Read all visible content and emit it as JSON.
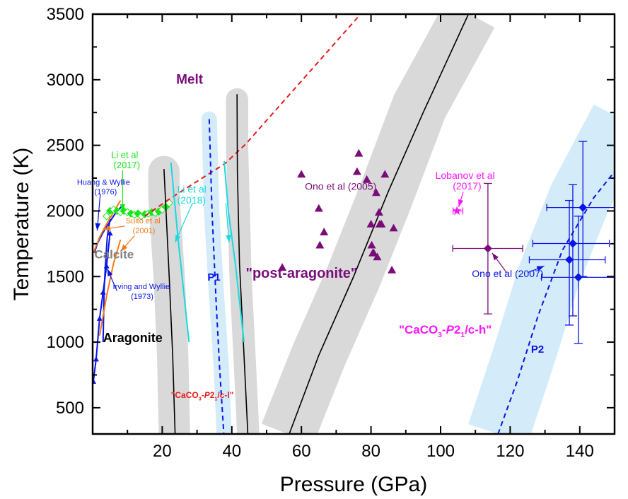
{
  "chart_data": {
    "type": "scatter",
    "title": "",
    "xlabel": "Pressure (GPa)",
    "ylabel": "Temperature (K)",
    "xlim": [
      0,
      150
    ],
    "ylim": [
      300,
      3500
    ],
    "xticks": [
      20,
      40,
      60,
      80,
      100,
      120,
      140
    ],
    "xtick_labels": [
      "20",
      "40",
      "60",
      "80",
      "100",
      "120",
      "140"
    ],
    "xminor": [
      10,
      30,
      50,
      70,
      90,
      110,
      130
    ],
    "yticks": [
      500,
      1000,
      1500,
      2000,
      2500,
      3000,
      3500
    ],
    "ytick_labels": [
      "500",
      "1000",
      "1500",
      "2000",
      "2500",
      "3000",
      "3500"
    ],
    "yminor": [
      750,
      1250,
      1750,
      2250,
      2750,
      3250
    ],
    "grid": false,
    "colors": {
      "boundary": "#000000",
      "band_gray": "#d9d9d9",
      "band_blue": "#d4ecf9",
      "melt": "#e8191a",
      "ono2005": "#7a0c7a",
      "ono2007": "#0a14e6",
      "lobanov": "#ff14ff",
      "li2017": "#19e619",
      "li2018": "#19d9e0",
      "suito": "#f47a18",
      "irving": "#0a14e6",
      "calcite_label": "#808080",
      "p1": "#0a14e6"
    },
    "bands": [
      {
        "name": "aragonite-P21c-l band",
        "color": "gray",
        "points": [
          [
            20.5,
            2300
          ],
          [
            20.5,
            2100
          ],
          [
            22,
            1500
          ],
          [
            23,
            900
          ],
          [
            23.5,
            300
          ]
        ],
        "halfwidth_gpa": 4.5,
        "rounded_top": true
      },
      {
        "name": "P1 band",
        "color": "blue",
        "points": [
          [
            33.5,
            2700
          ],
          [
            34.2,
            2000
          ],
          [
            35.5,
            1400
          ],
          [
            37,
            800
          ],
          [
            37.8,
            300
          ]
        ],
        "halfwidth_gpa": 2.2,
        "rounded_top": true
      },
      {
        "name": "P21c-l to post-aragonite band",
        "color": "gray",
        "points": [
          [
            41.5,
            2850
          ],
          [
            41.5,
            2500
          ],
          [
            42.5,
            1500
          ],
          [
            44,
            700
          ],
          [
            44.7,
            300
          ]
        ],
        "halfwidth_gpa": 3.2,
        "rounded_top": true
      },
      {
        "name": "post-aragonite band",
        "color": "gray",
        "points": [
          [
            56,
            300
          ],
          [
            65,
            900
          ],
          [
            75,
            1500
          ],
          [
            84,
            2100
          ],
          [
            94,
            2800
          ],
          [
            108.5,
            3500
          ]
        ],
        "halfwidth_gpa": 8
      },
      {
        "name": "P2 band",
        "color": "blue",
        "points": [
          [
            116.5,
            300
          ],
          [
            124,
            900
          ],
          [
            131,
            1500
          ],
          [
            140,
            2100
          ],
          [
            152,
            2700
          ]
        ],
        "halfwidth_gpa": 9
      }
    ],
    "series": [
      {
        "name": "Calcite-Aragonite boundary (Irving and Wyllie 1973)",
        "style": "line-triangles",
        "color": "irving",
        "x": [
          0.2,
          1.0,
          2.0,
          3.0,
          4.0,
          5.0
        ],
        "y": [
          700,
          870,
          1180,
          1380,
          1580,
          1830
        ]
      },
      {
        "name": "Huang & Wyllie (1976)",
        "style": "line",
        "color": "irving",
        "x": [
          0.5,
          1.5,
          2.5,
          3.5,
          4.5,
          5.5,
          6.5,
          7.5,
          8.5
        ],
        "y": [
          1680,
          1760,
          1810,
          1860,
          1900,
          1940,
          1980,
          2010,
          2040
        ]
      },
      {
        "name": "Huang & Wyllie (1976) melting",
        "style": "line",
        "color": "irving",
        "x": [
          3,
          3.3,
          3.7,
          4.2,
          5.0
        ],
        "y": [
          1000,
          1400,
          1600,
          1800,
          1940
        ]
      },
      {
        "name": "Suito et al (2001)",
        "style": "line",
        "color": "suito",
        "x": [
          0.2,
          2,
          4,
          6,
          8
        ],
        "y": [
          1680,
          1800,
          1900,
          1990,
          2080
        ]
      },
      {
        "name": "Suito et al (2001) 2",
        "style": "line",
        "color": "suito",
        "x": [
          2,
          4,
          6,
          8
        ],
        "y": [
          1050,
          1350,
          1600,
          1780
        ]
      },
      {
        "name": "Li et al (2017)",
        "style": "diamonds",
        "color": "li2017",
        "x": [
          4,
          5,
          6,
          7,
          8,
          9,
          10,
          11,
          12,
          13,
          14,
          15,
          16,
          17,
          18,
          19,
          20,
          21,
          22
        ],
        "y": [
          1960,
          2000,
          2010,
          2000,
          1990,
          2000,
          1990,
          1980,
          1970,
          1980,
          1960,
          1975,
          1980,
          1990,
          1985,
          1995,
          2010,
          2030,
          2060
        ]
      },
      {
        "name": "Melting curve (extrapolated)",
        "style": "dashed",
        "color": "melt",
        "x": [
          15,
          22,
          38,
          44,
          77
        ],
        "y": [
          1960,
          2090,
          2360,
          2510,
          3500
        ]
      },
      {
        "name": "Aragonite-P21c-l boundary",
        "style": "line",
        "color": "boundary",
        "x": [
          20.5,
          21,
          22,
          23,
          23.7
        ],
        "y": [
          2320,
          2050,
          1500,
          900,
          300
        ]
      },
      {
        "name": "P21c-l-post-aragonite boundary",
        "style": "line",
        "color": "boundary",
        "x": [
          41.5,
          41.6,
          42.2,
          43.5,
          44.6
        ],
        "y": [
          2890,
          2300,
          1600,
          900,
          300
        ]
      },
      {
        "name": "post-aragonite-P21c-h boundary",
        "style": "line",
        "color": "boundary",
        "x": [
          56.5,
          65,
          75,
          85,
          95,
          108
        ],
        "y": [
          300,
          900,
          1500,
          2150,
          2750,
          3500
        ]
      },
      {
        "name": "Li et al (2018) left",
        "style": "line",
        "color": "li2018",
        "x": [
          22.5,
          24.5,
          27.7
        ],
        "y": [
          2370,
          1800,
          1000
        ]
      },
      {
        "name": "Li et al (2018) right",
        "style": "line",
        "color": "li2018",
        "x": [
          37.8,
          39,
          41,
          43.5
        ],
        "y": [
          2380,
          2000,
          1600,
          1000
        ]
      },
      {
        "name": "P1",
        "style": "dashed",
        "color": "p1",
        "x": [
          33.5,
          34.3,
          35.5,
          36.5,
          37.7
        ],
        "y": [
          2700,
          2000,
          1300,
          800,
          300
        ]
      },
      {
        "name": "P2",
        "style": "dashed",
        "color": "p1",
        "x": [
          116.5,
          122,
          128,
          135,
          144,
          150
        ],
        "y": [
          300,
          700,
          1200,
          1700,
          2100,
          2300
        ]
      },
      {
        "name": "Ono et al (2005)",
        "style": "triangles",
        "color": "ono2005",
        "x": [
          60,
          65,
          65.3,
          66.5,
          54.5,
          76,
          76.5,
          78.8,
          80,
          80.5,
          81.5,
          82.3,
          82.5,
          84,
          86,
          80.2,
          80.8,
          81.8,
          86.5,
          83
        ],
        "y": [
          2280,
          2020,
          1740,
          1840,
          1570,
          2300,
          2440,
          2240,
          1900,
          1680,
          2140,
          1990,
          1900,
          2280,
          1550,
          1740,
          1680,
          1650,
          1870,
          1900
        ]
      },
      {
        "name": "Ono et al (2007) purple",
        "style": "diamond-errbar",
        "color": "ono2005",
        "points": [
          {
            "x": 113.6,
            "y": 1714,
            "xerr": [
              103.5,
              123.6
            ],
            "yerr": [
              1215,
              2210
            ]
          }
        ]
      },
      {
        "name": "Ono et al (2007)",
        "style": "diamond-errbar",
        "color": "ono2007",
        "points": [
          {
            "x": 140.9,
            "y": 2026,
            "xerr": [
              130.5,
              152
            ],
            "yerr": [
              1500,
              2530
            ]
          },
          {
            "x": 138.0,
            "y": 1752,
            "xerr": [
              126.5,
              148.5
            ],
            "yerr": [
              1200,
              2200
            ]
          },
          {
            "x": 137.0,
            "y": 1628,
            "xerr": [
              125.5,
              147.3
            ],
            "yerr": [
              1130,
              2080
            ]
          },
          {
            "x": 139.6,
            "y": 1494,
            "xerr": [
              129,
              152
            ],
            "yerr": [
              990,
              1960
            ]
          }
        ]
      },
      {
        "name": "Lobanov et al (2017)",
        "style": "star",
        "color": "lobanov",
        "points": [
          {
            "x": 104.7,
            "y": 2000,
            "xerr": [
              104,
              106
            ]
          }
        ]
      }
    ],
    "annotations": [
      {
        "text": "Melt",
        "x": 24,
        "y": 2970,
        "color": "ono2005",
        "bold": true,
        "size": 19
      },
      {
        "text": "Calcite",
        "x": 0.5,
        "y": 1640,
        "color": "calcite_label",
        "bold": true,
        "size": 17
      },
      {
        "text": "Aragonite",
        "x": 3,
        "y": 1000,
        "color": "boundary",
        "bold": true,
        "size": 18
      },
      {
        "text": "\"post-aragonite\"",
        "x": 44,
        "y": 1490,
        "color": "ono2005",
        "bold": true,
        "size": 20
      },
      {
        "text": "P1",
        "x": 33,
        "y": 1470,
        "color": "p1",
        "bold": true,
        "size": 15
      },
      {
        "text": "P2",
        "x": 126,
        "y": 920,
        "color": "p1",
        "bold": true,
        "size": 15
      },
      {
        "text": "Li et al",
        "x": 5.3,
        "y": 2405,
        "color": "li2017",
        "size": 13
      },
      {
        "text": "(2017)",
        "x": 6,
        "y": 2325,
        "color": "li2017",
        "size": 13
      },
      {
        "text": "Huang & Wyllie",
        "x": -4.5,
        "y": 2200,
        "color": "irving",
        "size": 11
      },
      {
        "text": "(1976)",
        "x": 0.5,
        "y": 2125,
        "color": "irving",
        "size": 11
      },
      {
        "text": "Suito et al",
        "x": 9.5,
        "y": 1905,
        "color": "suito",
        "size": 11
      },
      {
        "text": "(2001)",
        "x": 11.5,
        "y": 1830,
        "color": "suito",
        "size": 11
      },
      {
        "text": "Li et al",
        "x": 24.3,
        "y": 2140,
        "color": "li2018",
        "size": 14
      },
      {
        "text": "(2018)",
        "x": 24.3,
        "y": 2055,
        "color": "li2018",
        "size": 14
      },
      {
        "text": "Irving and Wyllie",
        "x": 5.8,
        "y": 1405,
        "color": "irving",
        "size": 11
      },
      {
        "text": "(1973)",
        "x": 11,
        "y": 1330,
        "color": "irving",
        "size": 11
      },
      {
        "text": "Ono et al (2005)",
        "x": 61,
        "y": 2160,
        "color": "ono2005",
        "size": 14
      },
      {
        "text": "Lobanov et al",
        "x": 98.5,
        "y": 2245,
        "color": "lobanov",
        "size": 14
      },
      {
        "text": "(2017)",
        "x": 103.5,
        "y": 2165,
        "color": "lobanov",
        "size": 14
      },
      {
        "text": "Ono et al (2007)",
        "x": 109,
        "y": 1495,
        "color": "ono2007",
        "size": 14
      },
      {
        "text": "\"CaCO",
        "x": 88,
        "y": 1065,
        "color": "lobanov",
        "bold": true,
        "size": 17,
        "suffix_sub": "3",
        "tail": "-P2",
        "tail2": "1",
        "tail3": "/c-h\""
      },
      {
        "text": "\"CaCO",
        "x": 22.5,
        "y": 575,
        "color": "melt",
        "bold": true,
        "size": 12,
        "suffix_sub": "3",
        "tail": "-P2",
        "tail2": "1",
        "tail3": "/c-l\""
      }
    ],
    "arrows": [
      {
        "color": "li2017",
        "from": [
          8.6,
          2310
        ],
        "to": [
          8.6,
          1995
        ]
      },
      {
        "color": "irving",
        "from": [
          2.2,
          2130
        ],
        "to": [
          1.3,
          1850
        ]
      },
      {
        "color": "suito",
        "from": [
          9.3,
          1885
        ],
        "to": [
          3,
          1860
        ]
      },
      {
        "color": "suito",
        "from": [
          12,
          1810
        ],
        "to": [
          8,
          1690
        ]
      },
      {
        "color": "li2018",
        "from": [
          28.7,
          2060
        ],
        "to": [
          23.7,
          1760
        ]
      },
      {
        "color": "li2018",
        "from": [
          38.3,
          2060
        ],
        "to": [
          39.2,
          1760
        ]
      },
      {
        "color": "irving",
        "from": [
          7,
          1390
        ],
        "to": [
          4.2,
          1560
        ]
      },
      {
        "color": "lobanov",
        "from": [
          106.5,
          2145
        ],
        "to": [
          105.2,
          2030
        ]
      },
      {
        "color": "ono2005",
        "from": [
          119,
          1530
        ],
        "to": [
          114.8,
          1680
        ]
      },
      {
        "color": "ono2007",
        "from": [
          125,
          1530
        ],
        "to": [
          129.8,
          1580
        ]
      }
    ]
  }
}
